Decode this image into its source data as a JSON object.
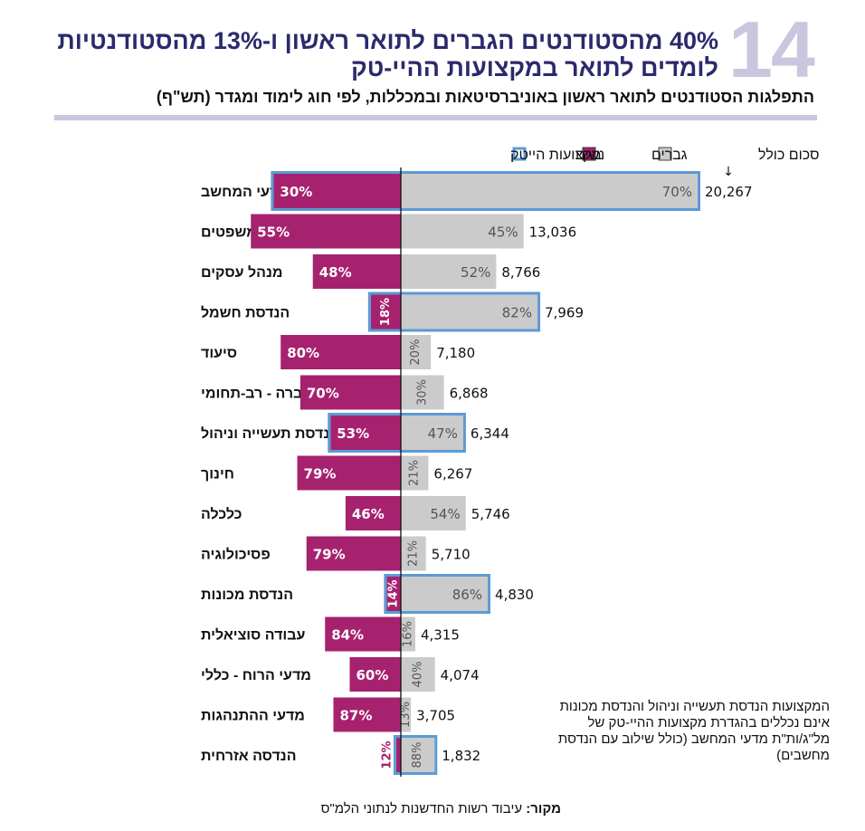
{
  "page": {
    "figure_number": "14",
    "title": "40% מהסטודנטים הגברים לתואר ראשון ו-13% מהסטודנטיות לומדים לתואר במקצועות ההיי-טק",
    "subtitle": "התפלגות הסטודנטים לתואר ראשון באוניברסיטאות ובמכללות, לפי חוג לימוד ומגדר (תש\"ף)",
    "note": "המקצועות הנדסת תעשייה וניהול והנדסת מכונות אינם נכללים בהגדרת מקצועות ההיי-טק של מל\"ג/ות\"ת מדעי המחשב (כולל שילוב עם הנדסת מחשבים)",
    "source_label": "מקור:",
    "source_text": "עיבוד רשות החדשנות לנתוני הלמ\"ס"
  },
  "colors": {
    "women": "#a6226f",
    "men": "#cbcbcb",
    "hightech_outline": "#5b9bd5",
    "title": "#2b2a6b",
    "accent_light": "#c9c7dd"
  },
  "chart_data": {
    "type": "bar",
    "orientation": "horizontal-diverging",
    "title": "התפלגות הסטודנטים לתואר ראשון באוניברסיטאות ובמכללות, לפי חוג לימוד ומגדר (תש\"ף)",
    "xlabel": "",
    "ylabel": "",
    "legend": {
      "position": "top",
      "items": [
        {
          "key": "total",
          "label": "סכום כולל",
          "icon": "down-arrow-icon"
        },
        {
          "key": "men",
          "label": "גברים"
        },
        {
          "key": "women",
          "label": "נשים"
        },
        {
          "key": "hightech",
          "label": "מקצועות הייטק"
        }
      ]
    },
    "grid": false,
    "categories": [
      "מדעי המחשב",
      "משפטים",
      "מנהל עסקים",
      "הנדסת חשמל",
      "סיעוד",
      "מדעי החברה - רב-תחומי",
      "הנדסת תעשייה וניהול",
      "חינוך",
      "כלכלה",
      "פסיכולוגיה",
      "הנדסת מכונות",
      "עבודה סוציאלית",
      "מדעי הרוח - כללי",
      "מדעי ההתנהגות",
      "הנדסה אזרחית"
    ],
    "totals": [
      20267,
      13036,
      8766,
      7969,
      7180,
      6868,
      6344,
      6267,
      5746,
      5710,
      4830,
      4315,
      4074,
      3705,
      1832
    ],
    "totals_labels": [
      "20,267",
      "13,036",
      "8,766",
      "7,969",
      "7,180",
      "6,868",
      "6,344",
      "6,267",
      "5,746",
      "5,710",
      "4,830",
      "4,315",
      "4,074",
      "3,705",
      "1,832"
    ],
    "series": [
      {
        "name": "נשים",
        "key": "women",
        "values_pct": [
          30,
          55,
          48,
          18,
          80,
          70,
          53,
          79,
          46,
          79,
          14,
          84,
          60,
          87,
          12
        ]
      },
      {
        "name": "גברים",
        "key": "men",
        "values_pct": [
          70,
          45,
          52,
          82,
          20,
          30,
          47,
          21,
          54,
          21,
          86,
          16,
          40,
          13,
          88
        ]
      }
    ],
    "hightech_flag": [
      true,
      false,
      false,
      true,
      false,
      false,
      true,
      false,
      false,
      false,
      true,
      false,
      false,
      false,
      true
    ],
    "bar_length_encoding": "count = total × pct"
  }
}
